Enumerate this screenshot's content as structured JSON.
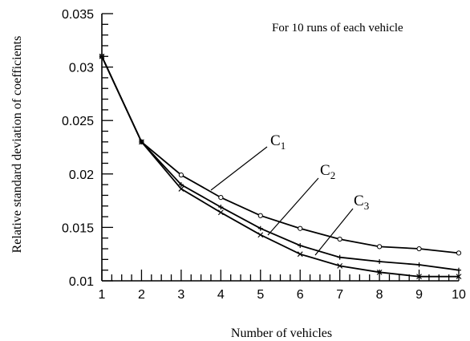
{
  "chart_data": {
    "type": "line",
    "xlabel": "Number of vehicles",
    "ylabel": "Relative standard deviation of coefficients",
    "annotation": "For 10 runs of each vehicle",
    "xlim": [
      1,
      10
    ],
    "ylim": [
      0.01,
      0.035
    ],
    "xticks": [
      "1",
      "2",
      "3",
      "4",
      "5",
      "6",
      "7",
      "8",
      "9",
      "10"
    ],
    "yticks": [
      "0.01",
      "0.015",
      "0.02",
      "0.025",
      "0.03",
      "0.035"
    ],
    "x": [
      1,
      2,
      3,
      4,
      5,
      6,
      7,
      8,
      9,
      10
    ],
    "series": [
      {
        "name": "C1",
        "label_main": "C",
        "label_sub": "1",
        "marker": "circle",
        "values": [
          0.031,
          0.023,
          0.0199,
          0.0178,
          0.0161,
          0.0149,
          0.0139,
          0.0132,
          0.013,
          0.0126
        ]
      },
      {
        "name": "C2",
        "label_main": "C",
        "label_sub": "2",
        "marker": "plus",
        "values": [
          0.031,
          0.023,
          0.019,
          0.0169,
          0.0149,
          0.0133,
          0.0122,
          0.0118,
          0.0115,
          0.011
        ]
      },
      {
        "name": "C3",
        "label_main": "C",
        "label_sub": "3",
        "marker": "cross",
        "values": [
          0.031,
          0.023,
          0.0186,
          0.0164,
          0.0143,
          0.0125,
          0.0114,
          0.0108,
          0.0104,
          0.0104
        ]
      }
    ],
    "grid": false,
    "legend": "none"
  }
}
